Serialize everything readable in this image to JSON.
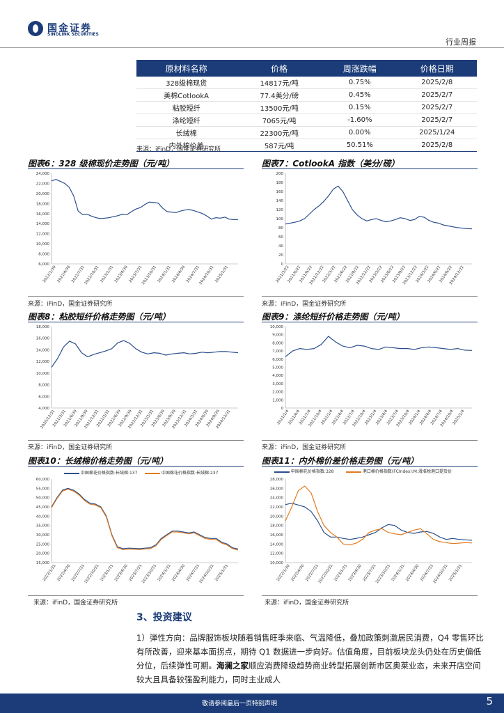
{
  "header": {
    "logo_cn": "国金证券",
    "logo_en": "SINOLINK SECURITIES",
    "label": "行业周报"
  },
  "table": {
    "columns": [
      "原材料名称",
      "价格",
      "周涨跌幅",
      "价格日期"
    ],
    "rows": [
      [
        "328级棉现货",
        "14817元/吨",
        "0.75%",
        "2025/2/8"
      ],
      [
        "美棉CotlookA",
        "77.4美分/磅",
        "0.45%",
        "2025/2/7"
      ],
      [
        "粘胶短纤",
        "13500元/吨",
        "0.15%",
        "2025/2/7"
      ],
      [
        "涤纶短纤",
        "7065元/吨",
        "-1.60%",
        "2025/2/7"
      ],
      [
        "长绒棉",
        "22300元/吨",
        "0.00%",
        "2025/1/24"
      ],
      [
        "内外棉价差",
        "587元/吨",
        "50.51%",
        "2025/2/8"
      ]
    ],
    "source": "来源：iFinD，国金证券研究所"
  },
  "source_text": "来源：iFinD，国金证券研究所",
  "charts_text": {
    "c6": {
      "title": "图表6：328 级棉现价走势图（元/吨）"
    },
    "c7": {
      "title": "图表7：CotlookA 指数（美分/磅）"
    },
    "c8": {
      "title": "图表8：粘胶短纤价格走势图（元/吨）"
    },
    "c9": {
      "title": "图表9：涤纶短纤价格走势图（元/吨）"
    },
    "c10": {
      "title": "图表10：长绒棉价格走势图（元/吨）",
      "legend": [
        "中国棉花价格指数:长绒棉:137",
        "中国棉花价格指数:长绒棉:237"
      ]
    },
    "c11": {
      "title": "图表11：内外棉价差价格走势图（元/吨）",
      "legend": [
        "中国棉花价格指数:328",
        "港口棉价格指数(FCIndex):M:滑准税港口提货价"
      ]
    }
  },
  "chart_data": [
    {
      "id": "c6",
      "type": "line",
      "title": "328级棉现价走势图（元/吨）",
      "ylim": [
        6000,
        24000
      ],
      "yticks": [
        "24,000",
        "22,000",
        "20,000",
        "18,000",
        "16,000",
        "14,000",
        "12,000",
        "10,000",
        "8,000",
        "6,000"
      ],
      "xticks": [
        "2022/1/30",
        "2022/4/30",
        "2022/7/31",
        "2022/10/31",
        "2023/1/31",
        "2023/4/30",
        "2023/7/31",
        "2023/10/31",
        "2024/1/31",
        "2024/4/30",
        "2024/7/31",
        "2024/10/31",
        "2025/1/31"
      ],
      "color": "#2a4e8c",
      "series": [
        {
          "name": "328",
          "values": [
            22500,
            22800,
            22400,
            22000,
            21200,
            19500,
            16500,
            15800,
            15900,
            15500,
            15200,
            15000,
            15100,
            15200,
            15400,
            15600,
            15900,
            15800,
            16400,
            16900,
            17200,
            17800,
            18300,
            18200,
            18100,
            17100,
            16400,
            16300,
            16200,
            16500,
            16700,
            16800,
            16600,
            16300,
            16000,
            15500,
            14900,
            15200,
            15100,
            15300,
            14900,
            14800,
            14817
          ]
        }
      ]
    },
    {
      "id": "c7",
      "type": "line",
      "title": "CotlookA 指数（美分/磅）",
      "ylim": [
        0,
        200
      ],
      "yticks": [
        "200",
        "180",
        "160",
        "140",
        "120",
        "100",
        "80",
        "60",
        "40",
        "20",
        "0"
      ],
      "xticks": [
        "2021/3/22",
        "2021/6/22",
        "2021/9/22",
        "2021/12/22",
        "2022/3/22",
        "2022/6/22",
        "2022/9/22",
        "2022/12/22",
        "2023/3/22",
        "2023/6/22",
        "2023/9/22",
        "2023/12/22",
        "2024/3/22",
        "2024/6/22",
        "2024/9/22",
        "2024/12/22"
      ],
      "color": "#2a4e8c",
      "series": [
        {
          "name": "CotlookA",
          "values": [
            88,
            90,
            92,
            95,
            100,
            110,
            120,
            128,
            138,
            150,
            165,
            172,
            160,
            140,
            120,
            108,
            100,
            95,
            98,
            100,
            96,
            93,
            95,
            98,
            102,
            100,
            96,
            98,
            105,
            103,
            96,
            92,
            90,
            86,
            84,
            82,
            80,
            79,
            78,
            77.4
          ]
        }
      ]
    },
    {
      "id": "c8",
      "type": "line",
      "title": "粘胶短纤价格走势图（元/吨）",
      "ylim": [
        4000,
        18000
      ],
      "yticks": [
        "18,000",
        "16,000",
        "14,000",
        "12,000",
        "10,000",
        "8,000",
        "6,000",
        "4,000"
      ],
      "xticks": [
        "2020/12/31",
        "2021/3/31",
        "2021/6/30",
        "2021/9/30",
        "2021/12/31",
        "2022/3/31",
        "2022/6/30",
        "2022/9/30",
        "2022/12/31",
        "2023/3/31",
        "2023/6/30",
        "2023/9/30",
        "2023/12/31",
        "2024/3/31",
        "2024/6/30",
        "2024/9/30",
        "2024/12/31"
      ],
      "color": "#2a4e8c",
      "series": [
        {
          "name": "粘胶短纤",
          "values": [
            11000,
            12500,
            14500,
            15500,
            15000,
            13500,
            12800,
            13200,
            13500,
            13800,
            14200,
            15200,
            15600,
            15100,
            14200,
            13600,
            13300,
            13500,
            13400,
            13100,
            13300,
            13400,
            13500,
            13300,
            13400,
            13600,
            13500,
            13600,
            13700,
            13700,
            13600,
            13500
          ]
        }
      ]
    },
    {
      "id": "c9",
      "type": "line",
      "title": "涤纶短纤价格走势图（元/吨）",
      "ylim": [
        0,
        10000
      ],
      "yticks": [
        "10,000",
        "9,000",
        "8,000",
        "7,000",
        "6,000",
        "5,000",
        "4,000",
        "3,000",
        "2,000",
        "1,000",
        "0"
      ],
      "xticks": [
        "2021/1/4",
        "2021/4/4",
        "2021/7/4",
        "2021/10/4",
        "2022/1/4",
        "2022/4/4",
        "2022/7/4",
        "2022/10/4",
        "2023/1/4",
        "2023/4/4",
        "2023/7/4",
        "2023/10/4",
        "2024/1/4",
        "2024/4/4",
        "2024/7/4",
        "2024/10/4",
        "2025/1/4"
      ],
      "color": "#2a4e8c",
      "series": [
        {
          "name": "涤纶短纤",
          "values": [
            6300,
            7000,
            7300,
            7200,
            7300,
            7800,
            8800,
            8100,
            7600,
            7400,
            7700,
            7600,
            7300,
            7200,
            7500,
            7400,
            7300,
            7300,
            7200,
            7400,
            7500,
            7400,
            7300,
            7200,
            7300,
            7100,
            7065
          ]
        }
      ]
    },
    {
      "id": "c10",
      "type": "line",
      "title": "长绒棉价格走势图（元/吨）",
      "ylim": [
        15000,
        60000
      ],
      "yticks": [
        "60,000",
        "55,000",
        "50,000",
        "45,000",
        "40,000",
        "35,000",
        "30,000",
        "25,000",
        "20,000",
        "15,000"
      ],
      "xticks": [
        "2022/1/31",
        "2022/4/30",
        "2022/7/31",
        "2022/10/31",
        "2023/1/31",
        "2023/4/30",
        "2023/7/31",
        "2023/10/31",
        "2024/1/31",
        "2024/4/30",
        "2024/7/31",
        "2024/10/31",
        "2025/1/31"
      ],
      "series": [
        {
          "name": "中国棉花价格指数:长绒棉:137",
          "color": "#2a4e8c",
          "values": [
            45000,
            50000,
            54000,
            55000,
            54000,
            52000,
            49000,
            47000,
            46500,
            45000,
            40000,
            30000,
            23500,
            22500,
            22800,
            22700,
            22500,
            22800,
            23000,
            24500,
            28000,
            30000,
            32000,
            32000,
            31500,
            31000,
            31500,
            30000,
            28500,
            28000,
            28000,
            26000,
            25000,
            23000,
            22300
          ]
        },
        {
          "name": "中国棉花价格指数:长绒棉:237",
          "color": "#e07b20",
          "values": [
            44500,
            49500,
            53500,
            54500,
            53500,
            51500,
            48500,
            46500,
            46000,
            44500,
            39500,
            29500,
            23000,
            22000,
            22300,
            22200,
            22000,
            22300,
            22500,
            24000,
            27500,
            29500,
            31500,
            31500,
            31000,
            30500,
            31000,
            29500,
            28000,
            27500,
            27500,
            25500,
            24500,
            22500,
            21800
          ]
        }
      ]
    },
    {
      "id": "c11",
      "type": "line",
      "title": "内外棉价差价格走势图（元/吨）",
      "ylim": [
        10000,
        28000
      ],
      "yticks": [
        "28,000",
        "26,000",
        "24,000",
        "22,000",
        "20,000",
        "18,000",
        "16,000",
        "14,000",
        "12,000",
        "10,000"
      ],
      "xticks": [
        "2022/1/30",
        "2022/4/30",
        "2022/7/31",
        "2022/10/31",
        "2023/1/31",
        "2023/4/30",
        "2023/7/31",
        "2023/10/31",
        "2024/1/31",
        "2024/4/30",
        "2024/7/31",
        "2024/10/31",
        "2025/1/31"
      ],
      "series": [
        {
          "name": "中国棉花价格指数:328",
          "color": "#2a4e8c",
          "values": [
            22500,
            22800,
            22400,
            22000,
            21000,
            19000,
            16500,
            15500,
            15500,
            15200,
            15000,
            15200,
            15500,
            16000,
            16500,
            17500,
            18200,
            18000,
            17000,
            16500,
            16300,
            16600,
            16700,
            16300,
            15500,
            15000,
            15200,
            15000,
            14900,
            14817
          ]
        },
        {
          "name": "港口棉价格指数(FCIndex):M:滑准税港口提货价",
          "color": "#e07b20",
          "values": [
            19000,
            22000,
            25500,
            26500,
            25000,
            21000,
            18000,
            16500,
            15500,
            14000,
            13800,
            14200,
            15000,
            16500,
            17000,
            17300,
            16500,
            16200,
            16000,
            16500,
            17000,
            17300,
            16200,
            15000,
            14500,
            14300,
            14100,
            14200,
            14300,
            14230
          ]
        }
      ]
    }
  ],
  "section": {
    "title": "3、投资建议"
  },
  "paragraph": {
    "prefix": "1）弹性方向：品牌服饰板块随着销售旺季来临、气温降低，叠加政策刺激居民消费，Q4 零售环比有所改善，迎来基本面拐点，期待 Q1 数据进一步向好。估值角度，目前板块龙头仍处在历史偏低分位，后续弹性可期。",
    "bold": "海澜之家",
    "suffix": "顺应消费降级趋势商业转型拓展创新市区奥莱业态，未来开店空间较大且具备较强盈利能力，同时主业成人"
  },
  "footer": {
    "text": "敬请参阅最后一页特别声明",
    "page": "5"
  }
}
